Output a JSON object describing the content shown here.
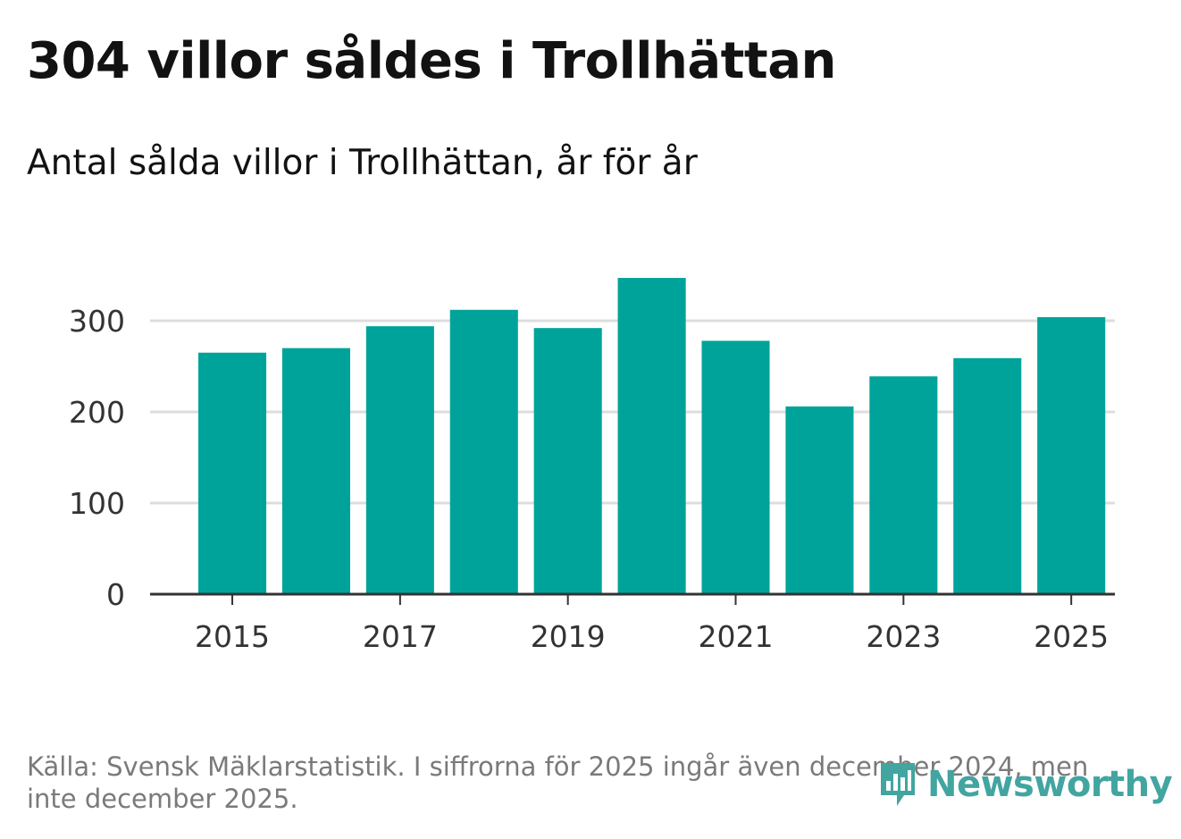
{
  "title": "304 villor såldes i Trollhättan",
  "subtitle": "Antal sålda villor i Trollhättan, år för år",
  "source": "Källa: Svensk Mäklarstatistik. I siffrorna för 2025 ingår även december 2024, men inte december 2025.",
  "brand": {
    "name": "Newsworthy",
    "icon": "bar-chart-speech-bubble-icon",
    "color": "#42a5a0"
  },
  "colors": {
    "bar": "#00a39a",
    "grid": "#dddddd",
    "axis": "#333333"
  },
  "chart_data": {
    "type": "bar",
    "title": "Antal sålda villor i Trollhättan, år för år",
    "xlabel": "",
    "ylabel": "",
    "categories": [
      "2015",
      "2016",
      "2017",
      "2018",
      "2019",
      "2020",
      "2021",
      "2022",
      "2023",
      "2024",
      "2025"
    ],
    "values": [
      265,
      270,
      294,
      312,
      292,
      347,
      278,
      206,
      239,
      259,
      304
    ],
    "ylim": [
      0,
      350
    ],
    "yticks": [
      0,
      100,
      200,
      300
    ],
    "xtick_labels": [
      "2015",
      "2017",
      "2019",
      "2021",
      "2023",
      "2025"
    ],
    "grid": true,
    "legend": "none"
  }
}
